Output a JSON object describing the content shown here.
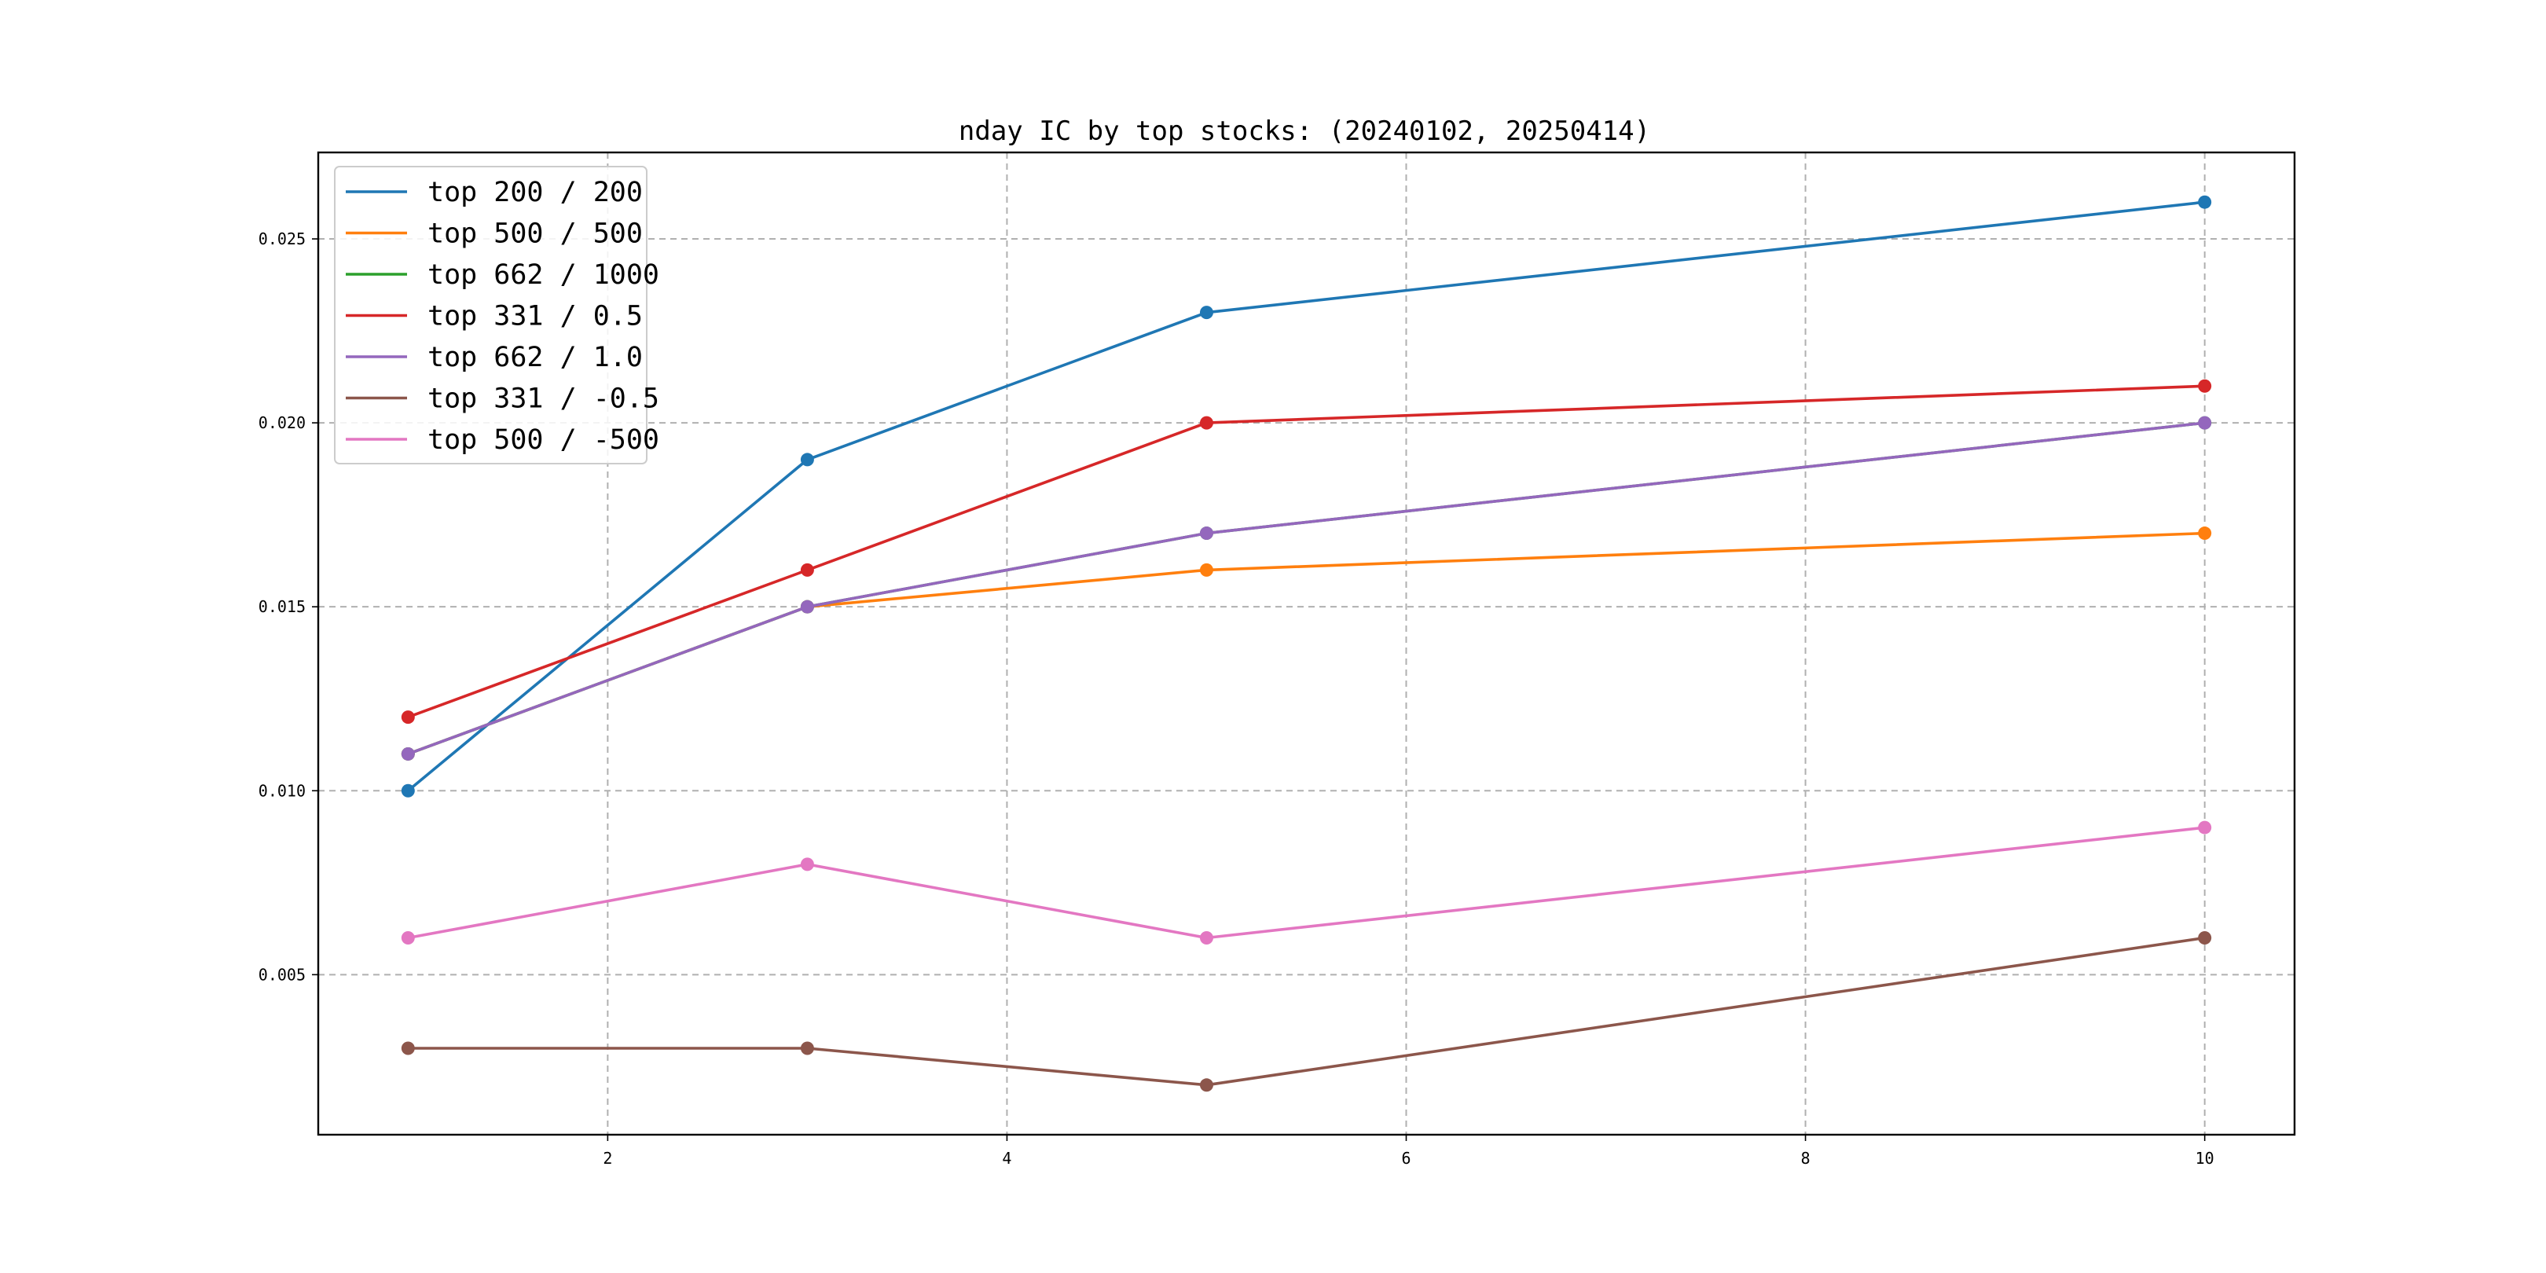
{
  "chart_data": {
    "type": "line",
    "title": "nday IC by top stocks: (20240102, 20250414)",
    "xlabel": "",
    "ylabel": "",
    "x": [
      1,
      3,
      5,
      10
    ],
    "xlim": [
      0.55,
      10.45
    ],
    "ylim": [
      0.00065,
      0.02735
    ],
    "xticks": [
      2,
      4,
      6,
      8,
      10
    ],
    "xtick_labels": [
      "2",
      "4",
      "6",
      "8",
      "10"
    ],
    "yticks": [
      0.005,
      0.01,
      0.015,
      0.02,
      0.025
    ],
    "ytick_labels": [
      "0.005",
      "0.010",
      "0.015",
      "0.020",
      "0.025"
    ],
    "grid": true,
    "legend_position": "top-left",
    "markers": true,
    "series": [
      {
        "name": "top 200 / 200",
        "color": "#1f77b4",
        "values": [
          0.01,
          0.019,
          0.023,
          0.026
        ]
      },
      {
        "name": "top 500 / 500",
        "color": "#ff7f0e",
        "values": [
          0.011,
          0.015,
          0.016,
          0.017
        ]
      },
      {
        "name": "top 662 / 1000",
        "color": "#2ca02c",
        "values": [
          0.011,
          0.015,
          0.017,
          0.02
        ]
      },
      {
        "name": "top 331 / 0.5",
        "color": "#d62728",
        "values": [
          0.012,
          0.016,
          0.02,
          0.021
        ]
      },
      {
        "name": "top 662 / 1.0",
        "color": "#9467bd",
        "values": [
          0.011,
          0.015,
          0.017,
          0.02
        ]
      },
      {
        "name": "top 331 / -0.5",
        "color": "#8c564b",
        "values": [
          0.003,
          0.003,
          0.002,
          0.006
        ]
      },
      {
        "name": "top 500 / -500",
        "color": "#e377c2",
        "values": [
          0.006,
          0.008,
          0.006,
          0.009
        ]
      }
    ]
  }
}
